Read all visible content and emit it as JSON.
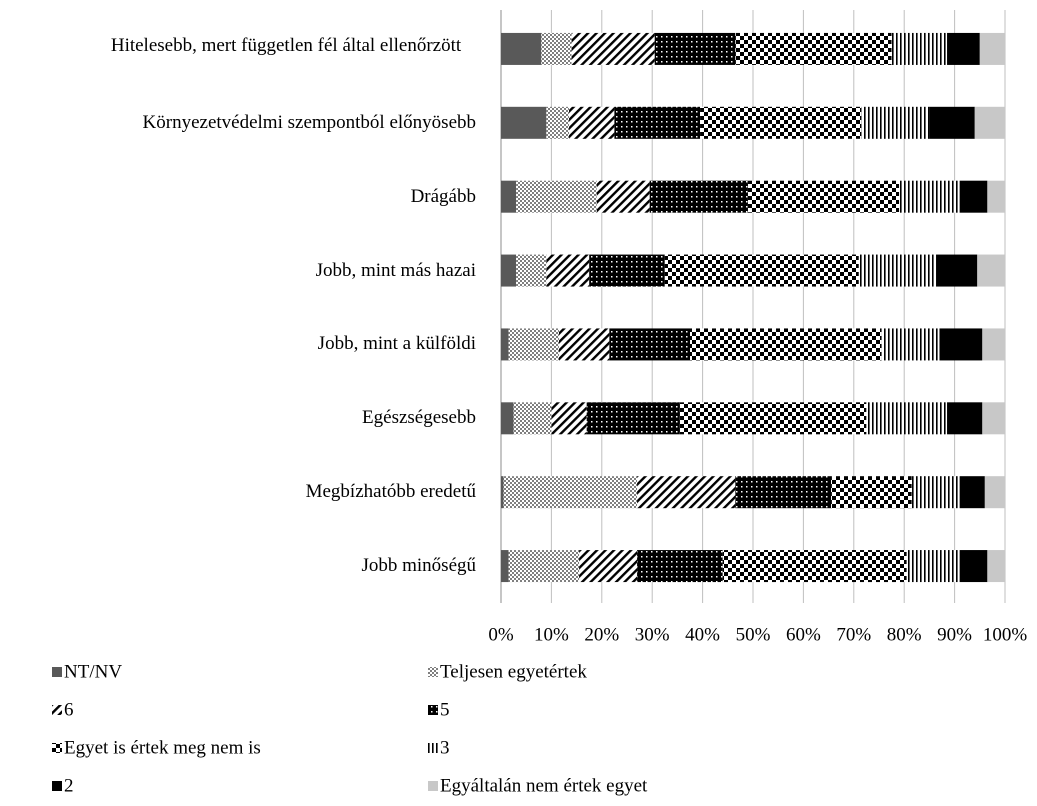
{
  "chart_data": {
    "type": "stacked-bar-horizontal",
    "categories": [
      "Hitelesebb, mert független fél által ellenőrzött",
      "Környezetvédelmi szempontból előnyösebb",
      "Drágább",
      "Jobb, mint más hazai",
      "Jobb, mint a külföldi",
      "Egészségesebb",
      "Megbízhatóbb eredetű",
      "Jobb minőségű"
    ],
    "series": [
      {
        "name": "NT/NV",
        "color": "#595959",
        "pattern": "solid",
        "values": [
          8,
          9,
          3,
          3,
          1.5,
          2.5,
          0.5,
          1.5
        ]
      },
      {
        "name": "Teljesen egyetértek",
        "color": "#7f7f7f",
        "pattern": "fine-checker",
        "values": [
          6,
          4.5,
          16,
          6,
          10,
          7.5,
          26.5,
          14
        ]
      },
      {
        "name": "6",
        "color": "#000000",
        "pattern": "diagonal",
        "values": [
          16.5,
          9,
          10.5,
          8.5,
          10,
          7,
          19.5,
          11.5
        ]
      },
      {
        "name": "5",
        "color": "#000000",
        "pattern": "dots",
        "values": [
          16,
          17,
          19.5,
          15,
          16,
          18.5,
          19,
          17
        ]
      },
      {
        "name": "Egyet is értek meg nem is",
        "color": "#000000",
        "pattern": "checker",
        "values": [
          31,
          32,
          30,
          38.5,
          38,
          37,
          16,
          36.5
        ]
      },
      {
        "name": "3",
        "color": "#000000",
        "pattern": "vertical",
        "values": [
          11,
          13.5,
          12,
          15.5,
          11.5,
          16,
          9.5,
          10.5
        ]
      },
      {
        "name": "2",
        "color": "#000000",
        "pattern": "solid",
        "values": [
          6.5,
          9,
          5.5,
          8,
          8.5,
          7,
          5,
          5.5
        ]
      },
      {
        "name": "Egyáltalán nem értek egyet",
        "color": "#c8c8c8",
        "pattern": "solid",
        "values": [
          5,
          6,
          3.5,
          5.5,
          4.5,
          4.5,
          4,
          3.5
        ]
      }
    ],
    "xlim": [
      0,
      100
    ],
    "xticks": [
      {
        "value": 0,
        "label": "0%"
      },
      {
        "value": 10,
        "label": "10%"
      },
      {
        "value": 20,
        "label": "20%"
      },
      {
        "value": 30,
        "label": "30%"
      },
      {
        "value": 40,
        "label": "40%"
      },
      {
        "value": 50,
        "label": "50%"
      },
      {
        "value": 60,
        "label": "60%"
      },
      {
        "value": 70,
        "label": "70%"
      },
      {
        "value": 80,
        "label": "80%"
      },
      {
        "value": 90,
        "label": "90%"
      },
      {
        "value": 100,
        "label": "100%"
      }
    ],
    "grid": true,
    "legend": "bottom"
  }
}
